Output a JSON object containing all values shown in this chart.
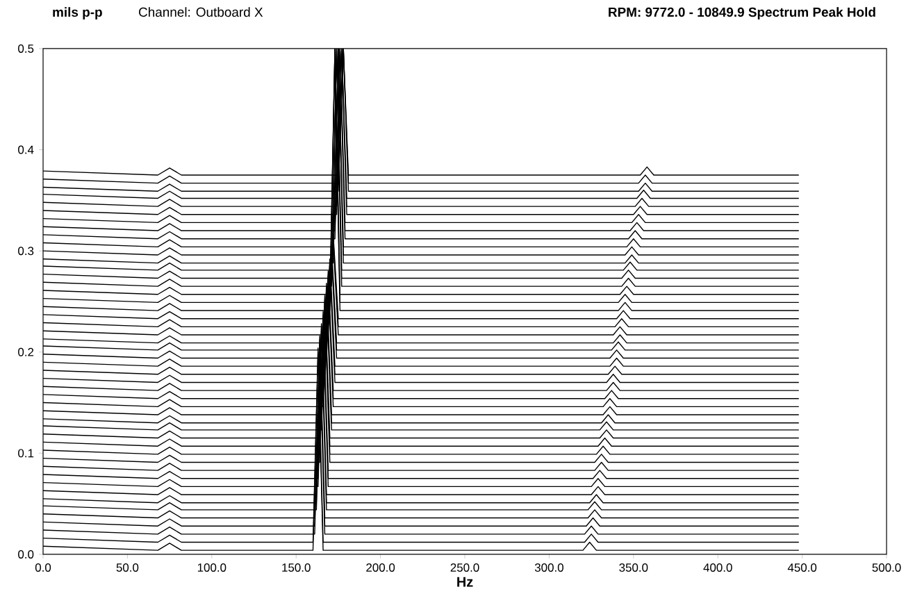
{
  "chart_data": {
    "type": "line",
    "title": "RPM:  9772.0 - 10849.9    Spectrum Peak Hold",
    "subtitle": "Channel:  Outboard X",
    "ylabel": "mils p-p",
    "xlabel": "Hz",
    "xlim": [
      0,
      500
    ],
    "ylim": [
      0,
      0.5
    ],
    "xticks": [
      {
        "value": 0,
        "label": "0.0"
      },
      {
        "value": 50,
        "label": "50.0"
      },
      {
        "value": 100,
        "label": "100.0"
      },
      {
        "value": 150,
        "label": "150.0"
      },
      {
        "value": 200,
        "label": "200.0"
      },
      {
        "value": 250,
        "label": "250.0"
      },
      {
        "value": 300,
        "label": "300.0"
      },
      {
        "value": 350,
        "label": "350.0"
      },
      {
        "value": 400,
        "label": "400.0"
      },
      {
        "value": 450,
        "label": "450.0"
      },
      {
        "value": 500,
        "label": "500.0"
      }
    ],
    "yticks": [
      {
        "value": 0,
        "label": "0.0"
      },
      {
        "value": 0.1,
        "label": "0.1"
      },
      {
        "value": 0.2,
        "label": "0.2"
      },
      {
        "value": 0.3,
        "label": "0.3"
      },
      {
        "value": 0.4,
        "label": "0.4"
      },
      {
        "value": 0.5,
        "label": "0.5"
      }
    ],
    "marker": "none",
    "line_style": "solid",
    "series": [
      {
        "color": "#000000",
        "x": [
          0,
          68,
          75,
          82,
          160,
          163,
          166,
          320,
          324,
          328,
          448
        ],
        "values": [
          0.008,
          0.004,
          0.011,
          0.004,
          0.004,
          0.2,
          0.004,
          0.004,
          0.012,
          0.004,
          0.004
        ]
      },
      {
        "color": "#000000",
        "x": [
          0,
          68,
          75,
          82,
          160,
          163,
          166,
          321,
          325,
          329,
          448
        ],
        "values": [
          0.016,
          0.012,
          0.019,
          0.012,
          0.012,
          0.204,
          0.012,
          0.012,
          0.02,
          0.012,
          0.012
        ]
      },
      {
        "color": "#000000",
        "x": [
          0,
          68,
          75,
          82,
          161,
          164,
          167,
          321,
          325,
          329,
          448
        ],
        "values": [
          0.024,
          0.02,
          0.027,
          0.02,
          0.02,
          0.208,
          0.02,
          0.02,
          0.028,
          0.02,
          0.02
        ]
      },
      {
        "color": "#000000",
        "x": [
          0,
          68,
          75,
          82,
          161,
          164,
          167,
          322,
          326,
          330,
          448
        ],
        "values": [
          0.032,
          0.028,
          0.035,
          0.028,
          0.028,
          0.212,
          0.028,
          0.028,
          0.036,
          0.028,
          0.028
        ]
      },
      {
        "color": "#000000",
        "x": [
          0,
          68,
          75,
          82,
          161,
          164,
          167,
          323,
          327,
          331,
          448
        ],
        "values": [
          0.04,
          0.036,
          0.043,
          0.036,
          0.036,
          0.216,
          0.036,
          0.036,
          0.044,
          0.036,
          0.036
        ]
      },
      {
        "color": "#000000",
        "x": [
          0,
          68,
          75,
          82,
          162,
          165,
          168,
          323,
          327,
          331,
          448
        ],
        "values": [
          0.048,
          0.044,
          0.051,
          0.044,
          0.044,
          0.22,
          0.044,
          0.044,
          0.052,
          0.044,
          0.044
        ]
      },
      {
        "color": "#000000",
        "x": [
          0,
          68,
          75,
          82,
          162,
          165,
          168,
          324,
          328,
          332,
          448
        ],
        "values": [
          0.055,
          0.051,
          0.058,
          0.051,
          0.051,
          0.224,
          0.051,
          0.051,
          0.059,
          0.051,
          0.051
        ]
      },
      {
        "color": "#000000",
        "x": [
          0,
          68,
          75,
          82,
          162,
          165,
          168,
          325,
          329,
          333,
          448
        ],
        "values": [
          0.063,
          0.059,
          0.066,
          0.059,
          0.059,
          0.228,
          0.059,
          0.059,
          0.067,
          0.059,
          0.059
        ]
      },
      {
        "color": "#000000",
        "x": [
          0,
          68,
          75,
          82,
          163,
          166,
          169,
          325,
          329,
          333,
          448
        ],
        "values": [
          0.071,
          0.067,
          0.074,
          0.067,
          0.067,
          0.232,
          0.067,
          0.067,
          0.075,
          0.067,
          0.067
        ]
      },
      {
        "color": "#000000",
        "x": [
          0,
          68,
          75,
          82,
          163,
          166,
          169,
          326,
          330,
          334,
          448
        ],
        "values": [
          0.079,
          0.075,
          0.082,
          0.075,
          0.075,
          0.236,
          0.075,
          0.075,
          0.083,
          0.075,
          0.075
        ]
      },
      {
        "color": "#000000",
        "x": [
          0,
          68,
          75,
          82,
          163,
          166,
          169,
          327,
          331,
          335,
          448
        ],
        "values": [
          0.087,
          0.083,
          0.09,
          0.083,
          0.083,
          0.24,
          0.083,
          0.083,
          0.091,
          0.083,
          0.083
        ]
      },
      {
        "color": "#000000",
        "x": [
          0,
          68,
          75,
          82,
          164,
          167,
          170,
          327,
          331,
          335,
          448
        ],
        "values": [
          0.095,
          0.091,
          0.098,
          0.091,
          0.091,
          0.244,
          0.091,
          0.091,
          0.099,
          0.091,
          0.091
        ]
      },
      {
        "color": "#000000",
        "x": [
          0,
          68,
          75,
          82,
          164,
          167,
          170,
          328,
          332,
          336,
          448
        ],
        "values": [
          0.103,
          0.099,
          0.106,
          0.099,
          0.099,
          0.248,
          0.099,
          0.099,
          0.107,
          0.099,
          0.099
        ]
      },
      {
        "color": "#000000",
        "x": [
          0,
          68,
          75,
          82,
          164,
          167,
          170,
          329,
          333,
          337,
          448
        ],
        "values": [
          0.111,
          0.107,
          0.114,
          0.107,
          0.107,
          0.252,
          0.107,
          0.107,
          0.115,
          0.107,
          0.107
        ]
      },
      {
        "color": "#000000",
        "x": [
          0,
          68,
          75,
          82,
          164,
          167,
          170,
          330,
          334,
          338,
          448
        ],
        "values": [
          0.119,
          0.115,
          0.122,
          0.115,
          0.115,
          0.256,
          0.115,
          0.115,
          0.123,
          0.115,
          0.115
        ]
      },
      {
        "color": "#000000",
        "x": [
          0,
          68,
          75,
          82,
          165,
          168,
          171,
          330,
          334,
          338,
          448
        ],
        "values": [
          0.127,
          0.123,
          0.13,
          0.123,
          0.123,
          0.26,
          0.123,
          0.123,
          0.131,
          0.123,
          0.123
        ]
      },
      {
        "color": "#000000",
        "x": [
          0,
          68,
          75,
          82,
          165,
          168,
          171,
          331,
          335,
          339,
          448
        ],
        "values": [
          0.134,
          0.13,
          0.137,
          0.13,
          0.13,
          0.264,
          0.13,
          0.13,
          0.138,
          0.13,
          0.13
        ]
      },
      {
        "color": "#000000",
        "x": [
          0,
          68,
          75,
          82,
          165,
          168,
          171,
          332,
          336,
          340,
          448
        ],
        "values": [
          0.142,
          0.138,
          0.145,
          0.138,
          0.138,
          0.268,
          0.138,
          0.138,
          0.146,
          0.138,
          0.138
        ]
      },
      {
        "color": "#000000",
        "x": [
          0,
          68,
          75,
          82,
          166,
          169,
          172,
          332,
          336,
          340,
          448
        ],
        "values": [
          0.15,
          0.146,
          0.153,
          0.146,
          0.146,
          0.272,
          0.146,
          0.146,
          0.154,
          0.146,
          0.146
        ]
      },
      {
        "color": "#000000",
        "x": [
          0,
          68,
          75,
          82,
          166,
          169,
          172,
          333,
          337,
          341,
          448
        ],
        "values": [
          0.158,
          0.154,
          0.161,
          0.154,
          0.154,
          0.276,
          0.154,
          0.154,
          0.162,
          0.154,
          0.154
        ]
      },
      {
        "color": "#000000",
        "x": [
          0,
          68,
          75,
          82,
          166,
          169,
          172,
          334,
          338,
          342,
          448
        ],
        "values": [
          0.166,
          0.162,
          0.169,
          0.162,
          0.162,
          0.28,
          0.162,
          0.162,
          0.17,
          0.162,
          0.162
        ]
      },
      {
        "color": "#000000",
        "x": [
          0,
          68,
          75,
          82,
          167,
          170,
          173,
          334,
          338,
          342,
          448
        ],
        "values": [
          0.174,
          0.17,
          0.177,
          0.17,
          0.17,
          0.284,
          0.17,
          0.17,
          0.178,
          0.17,
          0.17
        ]
      },
      {
        "color": "#000000",
        "x": [
          0,
          68,
          75,
          82,
          167,
          170,
          173,
          335,
          339,
          343,
          448
        ],
        "values": [
          0.182,
          0.178,
          0.185,
          0.178,
          0.178,
          0.288,
          0.178,
          0.178,
          0.186,
          0.178,
          0.178
        ]
      },
      {
        "color": "#000000",
        "x": [
          0,
          68,
          75,
          82,
          167,
          170,
          173,
          336,
          340,
          344,
          448
        ],
        "values": [
          0.19,
          0.186,
          0.193,
          0.186,
          0.186,
          0.292,
          0.186,
          0.186,
          0.194,
          0.186,
          0.186
        ]
      },
      {
        "color": "#000000",
        "x": [
          0,
          68,
          75,
          82,
          168,
          171,
          174,
          336,
          340,
          344,
          448
        ],
        "values": [
          0.198,
          0.194,
          0.201,
          0.194,
          0.194,
          0.296,
          0.194,
          0.194,
          0.202,
          0.194,
          0.194
        ]
      },
      {
        "color": "#000000",
        "x": [
          0,
          68,
          75,
          82,
          168,
          171,
          174,
          337,
          341,
          345,
          448
        ],
        "values": [
          0.206,
          0.202,
          0.209,
          0.202,
          0.202,
          0.3,
          0.202,
          0.202,
          0.21,
          0.202,
          0.202
        ]
      },
      {
        "color": "#000000",
        "x": [
          0,
          68,
          75,
          82,
          168,
          171,
          174,
          338,
          342,
          346,
          448
        ],
        "values": [
          0.213,
          0.209,
          0.216,
          0.209,
          0.209,
          0.304,
          0.209,
          0.209,
          0.217,
          0.209,
          0.209
        ]
      },
      {
        "color": "#000000",
        "x": [
          0,
          68,
          75,
          82,
          169,
          172,
          175,
          338,
          342,
          346,
          448
        ],
        "values": [
          0.221,
          0.217,
          0.224,
          0.217,
          0.217,
          0.308,
          0.217,
          0.217,
          0.225,
          0.217,
          0.217
        ]
      },
      {
        "color": "#000000",
        "x": [
          0,
          68,
          75,
          82,
          169,
          172,
          175,
          339,
          343,
          347,
          448
        ],
        "values": [
          0.229,
          0.225,
          0.232,
          0.225,
          0.225,
          0.312,
          0.225,
          0.225,
          0.233,
          0.225,
          0.225
        ]
      },
      {
        "color": "#000000",
        "x": [
          0,
          68,
          75,
          82,
          169,
          172,
          175,
          340,
          344,
          348,
          448
        ],
        "values": [
          0.237,
          0.233,
          0.24,
          0.233,
          0.233,
          0.316,
          0.233,
          0.233,
          0.241,
          0.233,
          0.233
        ]
      },
      {
        "color": "#000000",
        "x": [
          0,
          68,
          75,
          82,
          170,
          173,
          176,
          341,
          345,
          349,
          448
        ],
        "values": [
          0.245,
          0.241,
          0.248,
          0.241,
          0.241,
          0.5,
          0.241,
          0.241,
          0.249,
          0.241,
          0.241
        ]
      },
      {
        "color": "#000000",
        "x": [
          0,
          68,
          75,
          82,
          170,
          173,
          176,
          341,
          345,
          349,
          448
        ],
        "values": [
          0.253,
          0.249,
          0.256,
          0.249,
          0.249,
          0.5,
          0.249,
          0.249,
          0.257,
          0.249,
          0.249
        ]
      },
      {
        "color": "#000000",
        "x": [
          0,
          68,
          75,
          82,
          170,
          173,
          176,
          342,
          346,
          350,
          448
        ],
        "values": [
          0.261,
          0.257,
          0.264,
          0.257,
          0.257,
          0.5,
          0.257,
          0.257,
          0.265,
          0.257,
          0.257
        ]
      },
      {
        "color": "#000000",
        "x": [
          0,
          68,
          75,
          82,
          171,
          174,
          177,
          343,
          347,
          351,
          448
        ],
        "values": [
          0.269,
          0.265,
          0.272,
          0.265,
          0.265,
          0.5,
          0.265,
          0.265,
          0.273,
          0.265,
          0.265
        ]
      },
      {
        "color": "#000000",
        "x": [
          0,
          68,
          75,
          82,
          171,
          174,
          177,
          343,
          347,
          351,
          448
        ],
        "values": [
          0.277,
          0.273,
          0.28,
          0.273,
          0.273,
          0.5,
          0.273,
          0.273,
          0.281,
          0.273,
          0.273
        ]
      },
      {
        "color": "#000000",
        "x": [
          0,
          68,
          75,
          82,
          171,
          174,
          177,
          344,
          348,
          352,
          448
        ],
        "values": [
          0.285,
          0.281,
          0.288,
          0.281,
          0.281,
          0.5,
          0.281,
          0.281,
          0.289,
          0.281,
          0.281
        ]
      },
      {
        "color": "#000000",
        "x": [
          0,
          68,
          75,
          82,
          172,
          175,
          178,
          345,
          349,
          353,
          448
        ],
        "values": [
          0.292,
          0.288,
          0.295,
          0.288,
          0.288,
          0.5,
          0.288,
          0.288,
          0.296,
          0.288,
          0.288
        ]
      },
      {
        "color": "#000000",
        "x": [
          0,
          68,
          75,
          82,
          172,
          175,
          178,
          345,
          349,
          353,
          448
        ],
        "values": [
          0.3,
          0.296,
          0.303,
          0.296,
          0.296,
          0.5,
          0.296,
          0.296,
          0.304,
          0.296,
          0.296
        ]
      },
      {
        "color": "#000000",
        "x": [
          0,
          68,
          75,
          82,
          172,
          175,
          178,
          346,
          350,
          354,
          448
        ],
        "values": [
          0.308,
          0.304,
          0.311,
          0.304,
          0.304,
          0.5,
          0.304,
          0.304,
          0.312,
          0.304,
          0.304
        ]
      },
      {
        "color": "#000000",
        "x": [
          0,
          68,
          75,
          82,
          173,
          176,
          179,
          347,
          351,
          355,
          448
        ],
        "values": [
          0.316,
          0.312,
          0.319,
          0.312,
          0.312,
          0.5,
          0.312,
          0.312,
          0.32,
          0.312,
          0.312
        ]
      },
      {
        "color": "#000000",
        "x": [
          0,
          68,
          75,
          82,
          173,
          176,
          179,
          348,
          352,
          356,
          448
        ],
        "values": [
          0.324,
          0.32,
          0.327,
          0.32,
          0.32,
          0.5,
          0.32,
          0.32,
          0.328,
          0.32,
          0.32
        ]
      },
      {
        "color": "#000000",
        "x": [
          0,
          68,
          75,
          82,
          173,
          176,
          179,
          349,
          353,
          357,
          448
        ],
        "values": [
          0.332,
          0.328,
          0.335,
          0.328,
          0.328,
          0.5,
          0.328,
          0.328,
          0.336,
          0.328,
          0.328
        ]
      },
      {
        "color": "#000000",
        "x": [
          0,
          68,
          75,
          82,
          174,
          177,
          180,
          350,
          354,
          358,
          448
        ],
        "values": [
          0.34,
          0.336,
          0.343,
          0.336,
          0.336,
          0.5,
          0.336,
          0.336,
          0.344,
          0.336,
          0.336
        ]
      },
      {
        "color": "#000000",
        "x": [
          0,
          68,
          75,
          82,
          174,
          177,
          180,
          351,
          355,
          359,
          448
        ],
        "values": [
          0.348,
          0.344,
          0.351,
          0.344,
          0.344,
          0.5,
          0.344,
          0.344,
          0.352,
          0.344,
          0.344
        ]
      },
      {
        "color": "#000000",
        "x": [
          0,
          68,
          75,
          82,
          174,
          177,
          180,
          352,
          356,
          360,
          448
        ],
        "values": [
          0.356,
          0.352,
          0.359,
          0.352,
          0.352,
          0.5,
          0.352,
          0.352,
          0.36,
          0.352,
          0.352
        ]
      },
      {
        "color": "#000000",
        "x": [
          0,
          68,
          75,
          82,
          175,
          178,
          181,
          353,
          357,
          361,
          448
        ],
        "values": [
          0.363,
          0.359,
          0.366,
          0.359,
          0.359,
          0.5,
          0.359,
          0.359,
          0.367,
          0.359,
          0.359
        ]
      },
      {
        "color": "#000000",
        "x": [
          0,
          68,
          75,
          82,
          175,
          178,
          181,
          353,
          357,
          361,
          448
        ],
        "values": [
          0.371,
          0.367,
          0.374,
          0.367,
          0.367,
          0.5,
          0.367,
          0.367,
          0.375,
          0.367,
          0.367
        ]
      },
      {
        "color": "#000000",
        "x": [
          0,
          68,
          75,
          82,
          175,
          178,
          181,
          354,
          358,
          362,
          448
        ],
        "values": [
          0.379,
          0.375,
          0.382,
          0.375,
          0.375,
          0.5,
          0.375,
          0.375,
          0.383,
          0.375,
          0.375
        ]
      }
    ]
  }
}
